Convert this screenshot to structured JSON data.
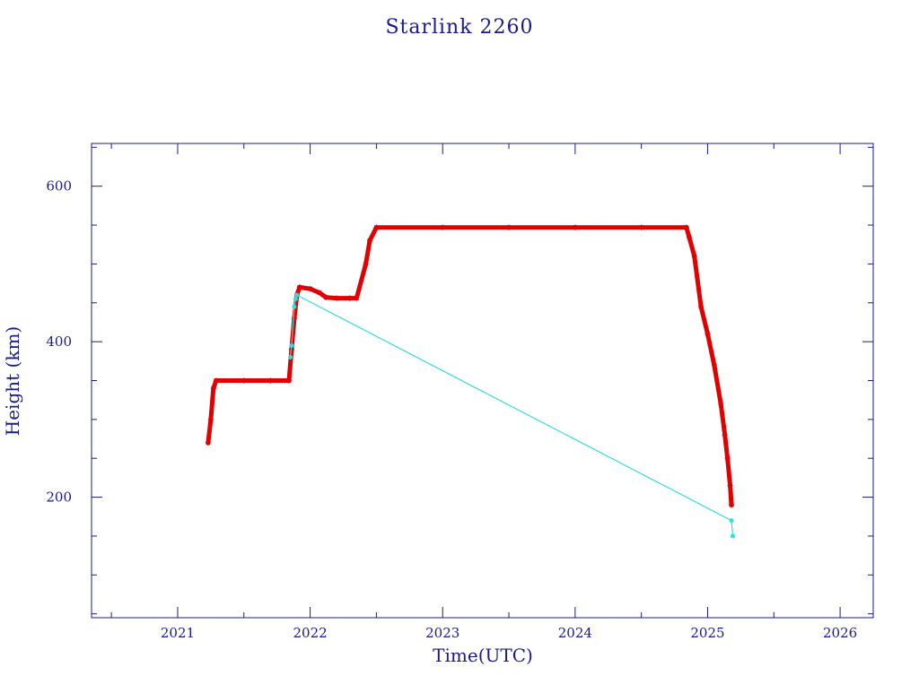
{
  "chart_data": {
    "type": "scatter",
    "title": "Starlink 2260",
    "xlabel": "Time(UTC)",
    "ylabel": "Height (km)",
    "xlim": [
      2020.35,
      2026.25
    ],
    "ylim": [
      45,
      655
    ],
    "x_ticks": [
      2021,
      2022,
      2023,
      2024,
      2025,
      2026
    ],
    "x_tick_labels": [
      "2021",
      "2022",
      "2023",
      "2024",
      "2025",
      "2026"
    ],
    "y_ticks": [
      200,
      400,
      600
    ],
    "y_tick_labels": [
      "200",
      "400",
      "600"
    ],
    "grid": false,
    "colors": {
      "axis": "#1a1a8c",
      "primary_series": "#e00000",
      "secondary_series": "#33dddd"
    },
    "series": [
      {
        "color": "#e00000",
        "marker": "star",
        "x": [
          2021.23,
          2021.25,
          2021.27,
          2021.29,
          2021.5,
          2021.7,
          2021.84,
          2021.86,
          2021.88,
          2021.9,
          2021.92,
          2022.0,
          2022.07,
          2022.12,
          2022.2,
          2022.3,
          2022.35,
          2022.42,
          2022.45,
          2022.5,
          2023.0,
          2023.5,
          2024.0,
          2024.5,
          2024.84,
          2024.86,
          2024.9,
          2024.95,
          2025.0,
          2025.05,
          2025.1,
          2025.13,
          2025.15,
          2025.17,
          2025.18
        ],
        "y": [
          270,
          300,
          340,
          350,
          350,
          350,
          350,
          390,
          430,
          460,
          470,
          468,
          463,
          457,
          456,
          456,
          456,
          500,
          530,
          547,
          547,
          547,
          547,
          547,
          547,
          535,
          510,
          445,
          410,
          370,
          320,
          280,
          250,
          215,
          190
        ]
      },
      {
        "color": "#33dddd",
        "marker": "dot",
        "x": [
          2021.85,
          2021.86,
          2021.88,
          2021.89,
          2021.9,
          2025.18,
          2025.19
        ],
        "y": [
          380,
          395,
          445,
          455,
          460,
          170,
          150
        ]
      }
    ]
  }
}
